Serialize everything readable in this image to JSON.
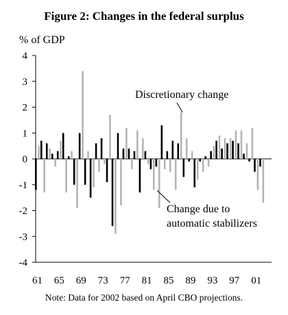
{
  "chart_data": {
    "type": "bar",
    "title": "Figure 2: Changes in the federal surplus",
    "ylabel": "% of GDP",
    "note": "Note: Data for 2002 based on April CBO projections.",
    "ylim": [
      -4,
      4
    ],
    "yticks": [
      "4",
      "3",
      "2",
      "1",
      "0",
      "-1",
      "-2",
      "-3",
      "-4"
    ],
    "xticks": [
      "61",
      "65",
      "69",
      "73",
      "77",
      "81",
      "85",
      "89",
      "93",
      "97",
      "01"
    ],
    "years": [
      1961,
      1962,
      1963,
      1964,
      1965,
      1966,
      1967,
      1968,
      1969,
      1970,
      1971,
      1972,
      1973,
      1974,
      1975,
      1976,
      1977,
      1978,
      1979,
      1980,
      1981,
      1982,
      1983,
      1984,
      1985,
      1986,
      1987,
      1988,
      1989,
      1990,
      1991,
      1992,
      1993,
      1994,
      1995,
      1996,
      1997,
      1998,
      1999,
      2000,
      2001,
      2002
    ],
    "series": [
      {
        "name": "Change due to automatic stabilizers",
        "color": "#000000",
        "values": [
          -1.2,
          0.7,
          0.6,
          0.2,
          0.3,
          1.0,
          0.1,
          -1.0,
          1.0,
          -1.0,
          -1.5,
          0.6,
          0.8,
          -0.9,
          -2.6,
          1.0,
          0.4,
          0.4,
          0.3,
          -1.3,
          0.3,
          -0.4,
          -0.3,
          1.3,
          0.3,
          0.7,
          0.6,
          -0.7,
          -0.1,
          -1.1,
          -0.1,
          0.1,
          0.3,
          0.7,
          0.4,
          0.6,
          0.7,
          0.6,
          0.2,
          -0.1,
          -0.5,
          -0.3
        ]
      },
      {
        "name": "Discretionary change",
        "color": "#b4b4b4",
        "values": [
          0.5,
          -1.3,
          0.4,
          -0.3,
          0.7,
          -1.3,
          0.3,
          -1.9,
          3.4,
          0.3,
          -1.1,
          -0.5,
          -0.2,
          1.7,
          -2.9,
          -1.8,
          1.2,
          -0.4,
          1.1,
          0.8,
          -0.2,
          -1.2,
          -1.9,
          -0.4,
          -0.5,
          -1.2,
          1.8,
          0.8,
          0.3,
          -0.8,
          -0.5,
          -0.3,
          0.5,
          0.9,
          0.8,
          0.8,
          1.1,
          1.1,
          0.6,
          1.2,
          -1.2,
          -1.7
        ]
      }
    ],
    "annotations": [
      {
        "lines": [
          "Discretionary change"
        ]
      },
      {
        "lines": [
          "Change due to",
          "automatic stabilizers"
        ]
      }
    ],
    "grid": false,
    "legend": "none"
  }
}
